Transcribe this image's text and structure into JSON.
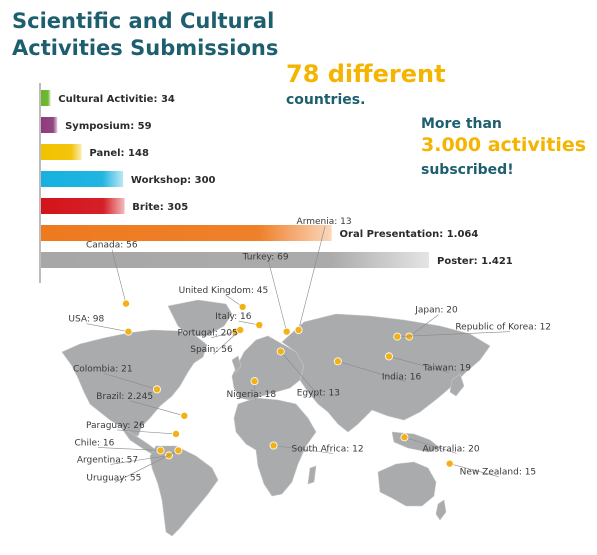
{
  "header": {
    "title_line1": "Scientific and Cultural",
    "title_line2": "Activities Submissions"
  },
  "stats": {
    "countries_value": "78 different",
    "countries_label": "countries.",
    "more_than": "More than",
    "activities_value": "3.000 activities",
    "subscribed": "subscribed!"
  },
  "colors": {
    "title": "#1d5f6e",
    "highlight": "#f4b400",
    "marker": "#f2b215",
    "land": "#a9abad"
  },
  "chart_data": {
    "type": "bar",
    "orientation": "horizontal",
    "categories": [
      "Cultural Activitie",
      "Symposium",
      "Panel",
      "Workshop",
      "Brite",
      "Oral Presentation",
      "Poster"
    ],
    "values": [
      34,
      59,
      148,
      300,
      305,
      1064,
      1421
    ],
    "labels": [
      "Cultural Activitie: 34",
      "Symposium: 59",
      "Panel: 148",
      "Workshop: 300",
      "Brite: 305",
      "Oral Presentation: 1.064",
      "Poster: 1.421"
    ],
    "colors": [
      "#6ab42d",
      "#8e3b7d",
      "#f2c200",
      "#16b1e0",
      "#d3141c",
      "#ee7a1f",
      "#a7a7a7"
    ],
    "xlim": [
      0,
      1421
    ]
  },
  "map": {
    "countries": [
      {
        "label": "Canada: 56",
        "lon": -100,
        "lat": 56
      },
      {
        "label": "USA: 98",
        "lon": -98,
        "lat": 39
      },
      {
        "label": "Colombia: 21",
        "lon": -74,
        "lat": 4
      },
      {
        "label": "Brazil: 2.245",
        "lon": -51,
        "lat": -12
      },
      {
        "label": "Paraguay: 26",
        "lon": -58,
        "lat": -23
      },
      {
        "label": "Chile: 16",
        "lon": -71,
        "lat": -33
      },
      {
        "label": "Argentina: 57",
        "lon": -64,
        "lat": -36
      },
      {
        "label": "Uruguay: 55",
        "lon": -56,
        "lat": -33
      },
      {
        "label": "United Kingdom: 45",
        "lon": -2,
        "lat": 54
      },
      {
        "label": "Italy: 16",
        "lon": 12,
        "lat": 43
      },
      {
        "label": "Portugal: 205",
        "lon": -8,
        "lat": 39
      },
      {
        "label": "Spain: 56",
        "lon": -4,
        "lat": 40
      },
      {
        "label": "Turkey: 69",
        "lon": 35,
        "lat": 39
      },
      {
        "label": "Armenia: 13",
        "lon": 45,
        "lat": 40
      },
      {
        "label": "Nigeria: 18",
        "lon": 8,
        "lat": 9
      },
      {
        "label": "Egypt: 13",
        "lon": 30,
        "lat": 27
      },
      {
        "label": "South Africa: 12",
        "lon": 24,
        "lat": -30
      },
      {
        "label": "India: 16",
        "lon": 78,
        "lat": 21
      },
      {
        "label": "Japan: 20",
        "lon": 138,
        "lat": 36
      },
      {
        "label": "Republic of Korea: 12",
        "lon": 128,
        "lat": 36
      },
      {
        "label": "Taiwan: 19",
        "lon": 121,
        "lat": 24
      },
      {
        "label": "Australia: 20",
        "lon": 134,
        "lat": -25
      },
      {
        "label": "New Zealand: 15",
        "lon": 172,
        "lat": -41
      }
    ]
  }
}
